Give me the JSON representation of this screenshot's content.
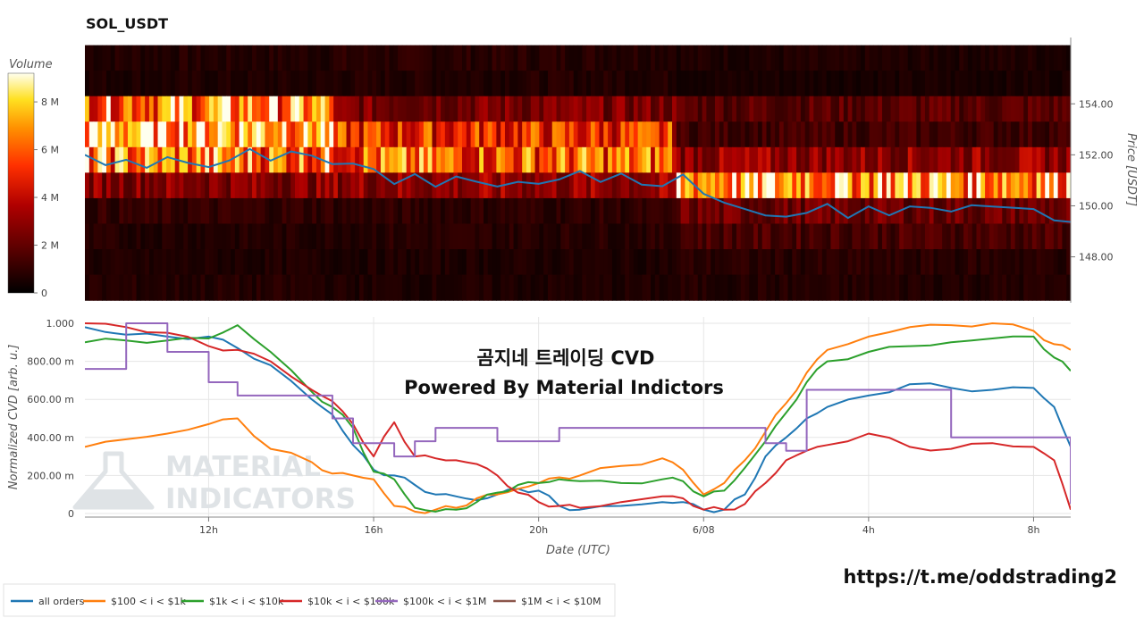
{
  "chart_data": [
    {
      "type": "heatmap",
      "title": "SOL_USDT",
      "ylabel": "Price [USDT]",
      "ylim": [
        146.2,
        156.6
      ],
      "yticks": [
        148.0,
        150.0,
        152.0,
        154.0
      ],
      "ytick_labels": [
        "148.00",
        "150.00",
        "152.00",
        "154.00"
      ],
      "colorbar": {
        "label": "Volume",
        "ticks": [
          "0",
          "2 M",
          "4 M",
          "6 M",
          "8 M"
        ],
        "tick_values": [
          0,
          2,
          4,
          6,
          8
        ],
        "max": 9.2
      },
      "bands": [
        {
          "price": 155.8,
          "volume": [
            0.7,
            0.8,
            0.6
          ]
        },
        {
          "price": 154.8,
          "volume": [
            0.6,
            0.7,
            0.5
          ]
        },
        {
          "price": 153.8,
          "volume": [
            6.8,
            2.5,
            1.8
          ]
        },
        {
          "price": 152.8,
          "volume": [
            8.2,
            5.0,
            1.3
          ]
        },
        {
          "price": 151.8,
          "volume": [
            6.5,
            6.0,
            3.0
          ]
        },
        {
          "price": 150.8,
          "volume": [
            2.8,
            3.0,
            7.5
          ]
        },
        {
          "price": 149.8,
          "volume": [
            1.0,
            0.9,
            2.2
          ]
        },
        {
          "price": 148.8,
          "volume": [
            0.7,
            0.8,
            1.5
          ]
        },
        {
          "price": 147.8,
          "volume": [
            0.6,
            0.6,
            0.8
          ]
        },
        {
          "price": 146.8,
          "volume": [
            0.7,
            0.6,
            0.7
          ]
        }
      ],
      "price_series": {
        "x_hours": [
          9.0,
          9.5,
          10.0,
          10.5,
          11.0,
          11.5,
          12.0,
          12.5,
          13.0,
          13.5,
          14.0,
          14.5,
          15.0,
          15.5,
          16.0,
          16.5,
          17.0,
          17.5,
          18.0,
          18.5,
          19.0,
          19.5,
          20.0,
          20.5,
          21.0,
          21.5,
          22.0,
          22.5,
          23.0,
          23.5,
          24.0,
          24.5,
          25.0,
          25.5,
          26.0,
          26.5,
          27.0,
          27.5,
          28.0,
          28.5,
          29.0,
          29.5,
          30.0,
          30.5,
          31.0,
          31.5,
          32.0,
          32.5,
          32.9
        ],
        "price": [
          152.0,
          151.6,
          151.8,
          151.5,
          151.9,
          151.7,
          151.5,
          151.8,
          152.2,
          151.8,
          152.1,
          152.0,
          151.6,
          151.7,
          151.4,
          150.9,
          151.2,
          150.8,
          151.1,
          151.0,
          150.7,
          151.0,
          150.8,
          151.1,
          151.3,
          151.0,
          151.2,
          150.9,
          150.7,
          151.3,
          150.4,
          150.2,
          149.8,
          149.7,
          149.5,
          149.8,
          150.0,
          149.6,
          149.9,
          149.7,
          149.9,
          150.0,
          149.7,
          150.1,
          149.9,
          150.0,
          149.8,
          149.5,
          149.3
        ]
      }
    },
    {
      "type": "line",
      "title": "곰지네 트레이딩 CVD",
      "subtitle": "Powered By Material Indictors",
      "xlabel": "Date (UTC)",
      "ylabel": "Normalized CVD [arb. u.]",
      "ylim": [
        0,
        1000
      ],
      "xlim": [
        9.0,
        32.9
      ],
      "yticks": [
        0,
        200,
        400,
        600,
        800,
        1000
      ],
      "ytick_labels": [
        "0",
        "200.00 m",
        "400.00 m",
        "600.00 m",
        "800.00 m",
        "1.000"
      ],
      "xticks": [
        12,
        16,
        20,
        24,
        28,
        32
      ],
      "xtick_labels": [
        "12h",
        "16h",
        "20h",
        "6/08",
        "4h",
        "8h"
      ],
      "x_hours": [
        9.0,
        10.0,
        11.0,
        12.0,
        12.7,
        13.5,
        14.5,
        15.0,
        15.5,
        16.0,
        16.5,
        17.0,
        17.5,
        18.0,
        18.5,
        19.0,
        19.5,
        20.0,
        20.5,
        21.0,
        22.0,
        23.0,
        23.5,
        24.0,
        24.5,
        25.0,
        25.5,
        26.0,
        26.5,
        27.0,
        28.0,
        29.0,
        30.0,
        31.0,
        32.0,
        32.5,
        32.9
      ],
      "series": [
        {
          "name": "all orders",
          "color": "#1f77b4",
          "values": [
            980,
            940,
            930,
            930,
            870,
            780,
            600,
            520,
            360,
            230,
            200,
            150,
            100,
            90,
            70,
            100,
            130,
            120,
            40,
            20,
            40,
            60,
            60,
            20,
            20,
            100,
            300,
            400,
            500,
            560,
            620,
            680,
            660,
            650,
            660,
            560,
            350
          ]
        },
        {
          "name": "$100 < i < $1k",
          "color": "#ff7f0e",
          "values": [
            350,
            390,
            420,
            470,
            500,
            340,
            270,
            210,
            200,
            180,
            40,
            10,
            20,
            30,
            80,
            100,
            130,
            160,
            190,
            200,
            250,
            290,
            230,
            100,
            160,
            280,
            430,
            580,
            740,
            860,
            930,
            980,
            990,
            1000,
            960,
            890,
            860
          ]
        },
        {
          "name": "$1k < i < $10k",
          "color": "#2ca02c",
          "values": [
            900,
            910,
            910,
            920,
            990,
            850,
            640,
            560,
            450,
            220,
            180,
            30,
            10,
            20,
            60,
            110,
            150,
            160,
            180,
            170,
            160,
            180,
            170,
            90,
            120,
            240,
            380,
            530,
            690,
            800,
            850,
            880,
            900,
            920,
            930,
            820,
            750
          ]
        },
        {
          "name": "$10k < i < $100k",
          "color": "#d62728",
          "values": [
            1000,
            980,
            950,
            880,
            860,
            800,
            650,
            590,
            470,
            300,
            480,
            300,
            290,
            280,
            260,
            200,
            110,
            60,
            40,
            30,
            60,
            90,
            80,
            20,
            20,
            50,
            160,
            280,
            330,
            360,
            420,
            350,
            340,
            370,
            350,
            280,
            20
          ]
        },
        {
          "name": "$100k < i < $1M",
          "color": "#9467bd",
          "values": [
            760,
            1000,
            850,
            690,
            620,
            620,
            620,
            500,
            370,
            370,
            300,
            380,
            450,
            450,
            450,
            380,
            380,
            380,
            450,
            450,
            450,
            450,
            450,
            450,
            450,
            450,
            370,
            330,
            650,
            650,
            650,
            650,
            400,
            400,
            400,
            400,
            50
          ]
        },
        {
          "name": "$1M < i < $10M",
          "color": "#8c564b",
          "values": [
            null
          ]
        }
      ]
    }
  ],
  "watermark": {
    "line1": "MATERIAL",
    "line2": "INDICATORS"
  },
  "footer_link": "https://t.me/oddstrading2",
  "legend_entries": [
    "all orders",
    "$100 < i < $1k",
    "$1k < i < $10k",
    "$10k < i < $100k",
    "$100k < i < $1M",
    "$1M < i < $10M"
  ]
}
